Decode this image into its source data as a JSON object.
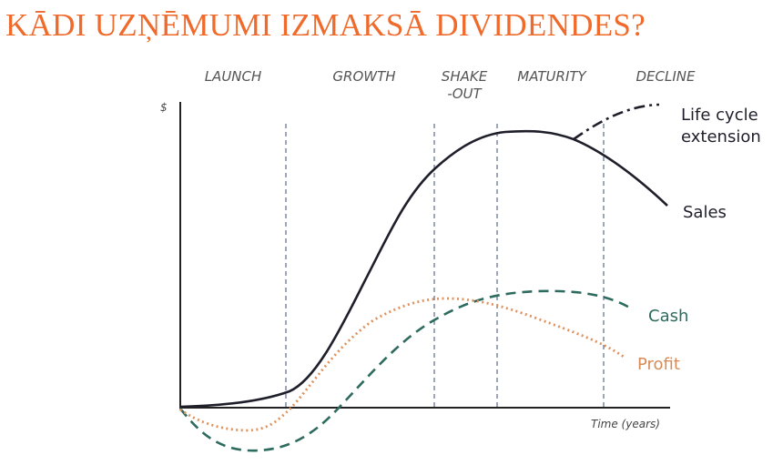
{
  "slide": {
    "title": "KĀDI UZŅĒMUMI IZMAKSĀ DIVIDENDES?"
  },
  "diagram": {
    "y_axis_label": "$",
    "x_axis_label": "Time (years)",
    "stages": [
      {
        "line1": "LAUNCH",
        "line2": ""
      },
      {
        "line1": "GROWTH",
        "line2": ""
      },
      {
        "line1": "SHAKE",
        "line2": "-OUT"
      },
      {
        "line1": "MATURITY",
        "line2": ""
      },
      {
        "line1": "DECLINE",
        "line2": ""
      }
    ],
    "labels": {
      "life_cycle_line1": "Life cycle",
      "life_cycle_line2": "extension",
      "sales": "Sales",
      "cash": "Cash",
      "profit": "Profit"
    },
    "colors": {
      "title": "#ef6a2b",
      "sales": "#1f1f2b",
      "cash": "#2d6b5e",
      "profit": "#e0915c",
      "axis": "#222222",
      "divider": "#5b6b8a"
    }
  }
}
